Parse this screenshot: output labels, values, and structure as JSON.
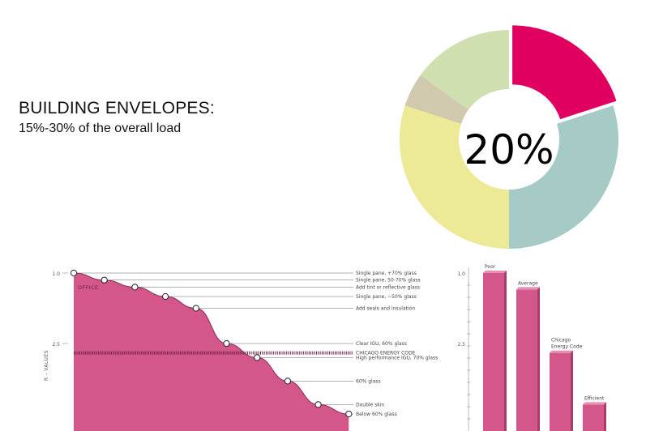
{
  "header": {
    "title": "BUILDING ENVELOPES:",
    "subtitle": "15%-30% of the overall load"
  },
  "chart_data": [
    {
      "type": "pie",
      "center_label": "20%",
      "slices": [
        {
          "value": 20,
          "color": "#e0005f",
          "exploded": true
        },
        {
          "value": 30,
          "color": "#a6cac6"
        },
        {
          "value": 30,
          "color": "#ece997"
        },
        {
          "value": 5,
          "color": "#d0c9ad"
        },
        {
          "value": 15,
          "color": "#cfdfb0"
        }
      ]
    },
    {
      "type": "area",
      "ylabel": "R - VALUES",
      "yticks": [
        "1.0",
        "2.5"
      ],
      "series_label": "OFFICE",
      "fill_color": "#d3578a",
      "line_color": "#8c2a55",
      "points": [
        {
          "x": 0,
          "y": 1.0,
          "label": "Single pane, +70% glass"
        },
        {
          "x": 1,
          "y": 1.15,
          "label": "Single pane, 50-70% glass"
        },
        {
          "x": 2,
          "y": 1.3,
          "label": "Add tint or reflective glass"
        },
        {
          "x": 3,
          "y": 1.5,
          "label": "Single pane, ~50% glass"
        },
        {
          "x": 4,
          "y": 1.75,
          "label": "Add seals and insulation"
        },
        {
          "x": 5,
          "y": 2.5,
          "label": "Clear IGU, 60% glass"
        },
        {
          "x": 6,
          "y": 2.8,
          "label": "High performance IGU, 70% glass"
        },
        {
          "x": 7,
          "y": 3.3,
          "label": "60% glass"
        },
        {
          "x": 8,
          "y": 3.8,
          "label": "Double skin"
        },
        {
          "x": 9,
          "y": 4.0,
          "label": "Below 60% glass"
        }
      ],
      "reference_line": {
        "y": 2.7,
        "label": "CHICAGO ENERGY CODE"
      }
    },
    {
      "type": "bar",
      "yticks": [
        "1.0",
        "2.5"
      ],
      "bar_color": "#d3578a",
      "categories": [
        "Poor",
        "Average",
        "Chicago Energy Code",
        "Efficient"
      ],
      "values": [
        1.0,
        1.35,
        2.7,
        3.8
      ]
    }
  ]
}
